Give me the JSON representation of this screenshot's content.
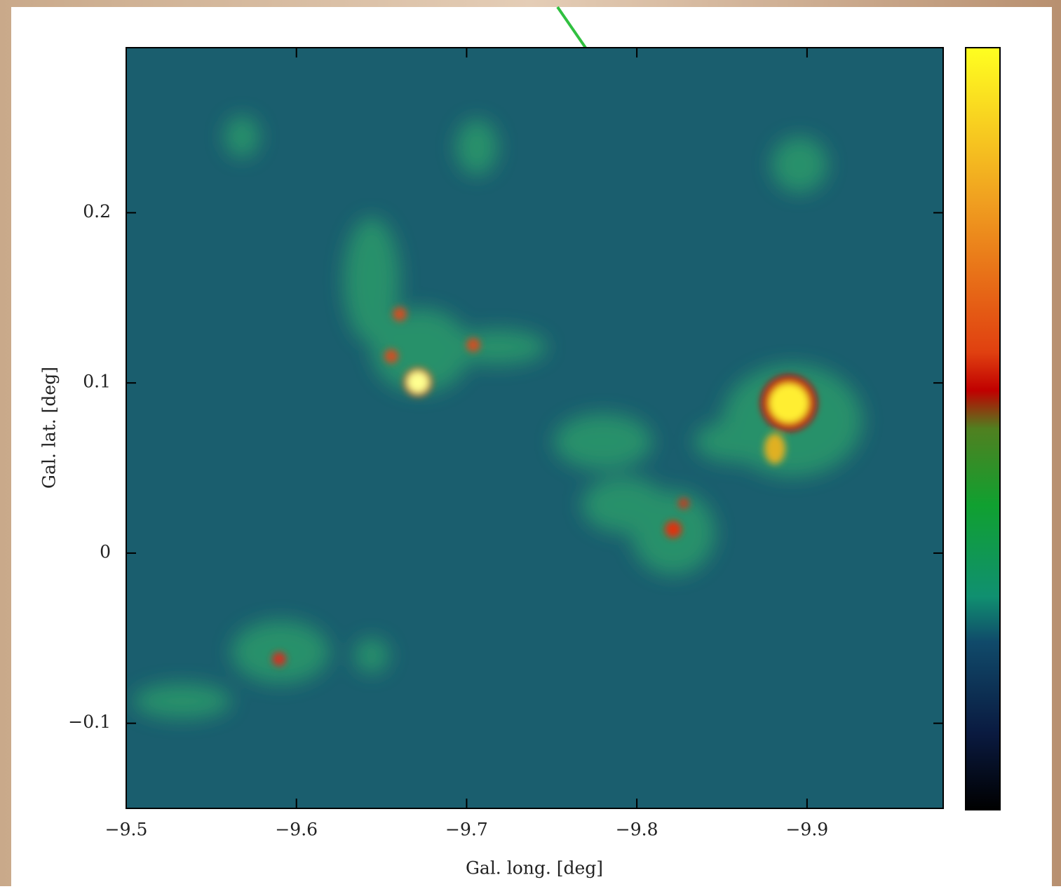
{
  "chart_data": {
    "type": "heatmap",
    "xlabel": "Gal. long. [deg]",
    "ylabel": "Gal. lat. [deg]",
    "xlim": [
      -9.5,
      -9.98
    ],
    "xticks": [
      {
        "value": -9.5,
        "label": "−9.5"
      },
      {
        "value": -9.6,
        "label": "−9.6"
      },
      {
        "value": -9.7,
        "label": "−9.7"
      },
      {
        "value": -9.8,
        "label": "−9.8"
      },
      {
        "value": -9.9,
        "label": "−9.9"
      }
    ],
    "ylim": [
      -0.15,
      0.297
    ],
    "yticks": [
      {
        "value": -0.1,
        "label": "−0.1"
      },
      0,
      0.1,
      0.2
    ]
  }
}
